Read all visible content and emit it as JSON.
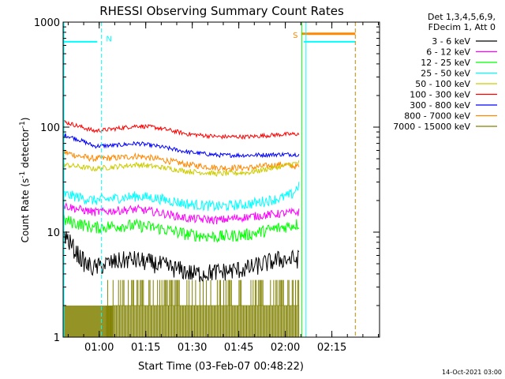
{
  "chart_data": {
    "type": "line",
    "title": "RHESSI Observing Summary Count Rates",
    "xlabel": "Start Time (03-Feb-07 00:48:22)",
    "ylabel": "Count Rate (s",
    "ylabel_sup1": "-1",
    "ylabel_mid": " detector",
    "ylabel_sup2": "-1",
    "ylabel_end": ")",
    "yscale": "log",
    "ylim": [
      1,
      1000
    ],
    "x_unit": "minutes after 00:48:22",
    "xlim": [
      0,
      102
    ],
    "y_ticks": [
      {
        "value": 1,
        "label": "1"
      },
      {
        "value": 10,
        "label": "10"
      },
      {
        "value": 100,
        "label": "100"
      },
      {
        "value": 1000,
        "label": "1000"
      }
    ],
    "x_ticks": [
      {
        "value": 11.63,
        "label": "01:00"
      },
      {
        "value": 26.63,
        "label": "01:15"
      },
      {
        "value": 41.63,
        "label": "01:30"
      },
      {
        "value": 56.63,
        "label": "01:45"
      },
      {
        "value": 71.63,
        "label": "02:00"
      },
      {
        "value": 86.63,
        "label": "02:15"
      }
    ],
    "legend_header": [
      "Det 1,3,4,5,6,9,",
      "FDecim 1, Att 0"
    ],
    "legend_placement": "top-right, outside plot",
    "series": [
      {
        "name": "3 - 6 keV",
        "color": "#000000",
        "values": [
          [
            0,
            10
          ],
          [
            2,
            8
          ],
          [
            4,
            6.5
          ],
          [
            7,
            5
          ],
          [
            10,
            4.5
          ],
          [
            14,
            5
          ],
          [
            22,
            5.5
          ],
          [
            32,
            4.8
          ],
          [
            42,
            4
          ],
          [
            52,
            4.2
          ],
          [
            60,
            4.5
          ],
          [
            65,
            5
          ],
          [
            70,
            5.5
          ],
          [
            76,
            5.5
          ]
        ]
      },
      {
        "name": "6 - 12 keV",
        "color": "#ff00ff",
        "values": [
          [
            0,
            18
          ],
          [
            5,
            16.5
          ],
          [
            10,
            15.5
          ],
          [
            17,
            16
          ],
          [
            24,
            16.5
          ],
          [
            30,
            15.5
          ],
          [
            40,
            13.5
          ],
          [
            50,
            13
          ],
          [
            60,
            14
          ],
          [
            70,
            15
          ],
          [
            76,
            15.5
          ]
        ]
      },
      {
        "name": "12 - 25 keV",
        "color": "#00ff00",
        "values": [
          [
            0,
            13
          ],
          [
            5,
            12
          ],
          [
            10,
            11
          ],
          [
            17,
            11.5
          ],
          [
            24,
            11.5
          ],
          [
            30,
            11
          ],
          [
            40,
            9.5
          ],
          [
            50,
            9
          ],
          [
            60,
            9.5
          ],
          [
            70,
            11
          ],
          [
            76,
            12
          ]
        ]
      },
      {
        "name": "25 - 50 keV",
        "color": "#00ffff",
        "values": [
          [
            0,
            23
          ],
          [
            5,
            21.5
          ],
          [
            10,
            20
          ],
          [
            17,
            21
          ],
          [
            24,
            22
          ],
          [
            30,
            21
          ],
          [
            40,
            18.5
          ],
          [
            50,
            17.5
          ],
          [
            60,
            18.5
          ],
          [
            70,
            21
          ],
          [
            74,
            23
          ],
          [
            76,
            28
          ]
        ]
      },
      {
        "name": "50 - 100 keV",
        "color": "#cccc00",
        "values": [
          [
            0,
            44
          ],
          [
            5,
            42
          ],
          [
            10,
            40
          ],
          [
            17,
            42
          ],
          [
            24,
            44
          ],
          [
            30,
            42
          ],
          [
            40,
            38
          ],
          [
            50,
            36
          ],
          [
            60,
            37
          ],
          [
            70,
            42
          ],
          [
            76,
            46
          ]
        ]
      },
      {
        "name": "100 - 300 keV",
        "color": "#ff0000",
        "values": [
          [
            0,
            113
          ],
          [
            5,
            102
          ],
          [
            10,
            92
          ],
          [
            15,
            95
          ],
          [
            24,
            103
          ],
          [
            30,
            99
          ],
          [
            40,
            86
          ],
          [
            50,
            81
          ],
          [
            60,
            81
          ],
          [
            70,
            85
          ],
          [
            76,
            86
          ]
        ]
      },
      {
        "name": "300 - 800 keV",
        "color": "#0000ff",
        "values": [
          [
            0,
            85
          ],
          [
            5,
            76
          ],
          [
            10,
            66
          ],
          [
            17,
            67
          ],
          [
            24,
            70
          ],
          [
            30,
            66
          ],
          [
            40,
            58
          ],
          [
            50,
            54
          ],
          [
            60,
            54
          ],
          [
            70,
            55
          ],
          [
            76,
            55
          ]
        ]
      },
      {
        "name": "800 - 7000 keV",
        "color": "#ff8800",
        "values": [
          [
            0,
            58
          ],
          [
            5,
            53
          ],
          [
            10,
            50
          ],
          [
            17,
            51
          ],
          [
            24,
            53
          ],
          [
            30,
            50
          ],
          [
            40,
            44
          ],
          [
            50,
            41
          ],
          [
            60,
            41
          ],
          [
            70,
            44
          ],
          [
            76,
            42
          ]
        ],
        "line_values": [
          [
            76.8,
            775
          ],
          [
            94.2,
            775
          ]
        ]
      },
      {
        "name": "7000 - 15000 keV",
        "color": "#808000",
        "values": [
          [
            0,
            2
          ],
          [
            76,
            2
          ]
        ]
      }
    ],
    "annotations": [
      {
        "text": "N",
        "x": 12.3,
        "y": 700,
        "color": "#00ffff",
        "kind": "night-start"
      },
      {
        "text": "S",
        "x": 76.6,
        "y": 760,
        "color": "#ff8800",
        "kind": "saa-start"
      }
    ],
    "vertical_markers": [
      {
        "x": 12.3,
        "color": "#00ffff",
        "style": "dashed"
      },
      {
        "x": 76.9,
        "color": "#00ff00",
        "style": "solid"
      },
      {
        "x": 78.3,
        "color": "#00ffff",
        "style": "solid"
      },
      {
        "x": 94.2,
        "color": "#00ffff",
        "style": "dashed"
      },
      {
        "x": 94.2,
        "color": "#ff8800",
        "style": "dashed"
      }
    ],
    "cyan_flag_lines": [
      {
        "x": [
          0,
          11.0
        ],
        "y": 650
      },
      {
        "x": [
          77.6,
          94.2
        ],
        "y": 650
      }
    ],
    "footer_timestamp": "14-Oct-2021 03:00"
  }
}
